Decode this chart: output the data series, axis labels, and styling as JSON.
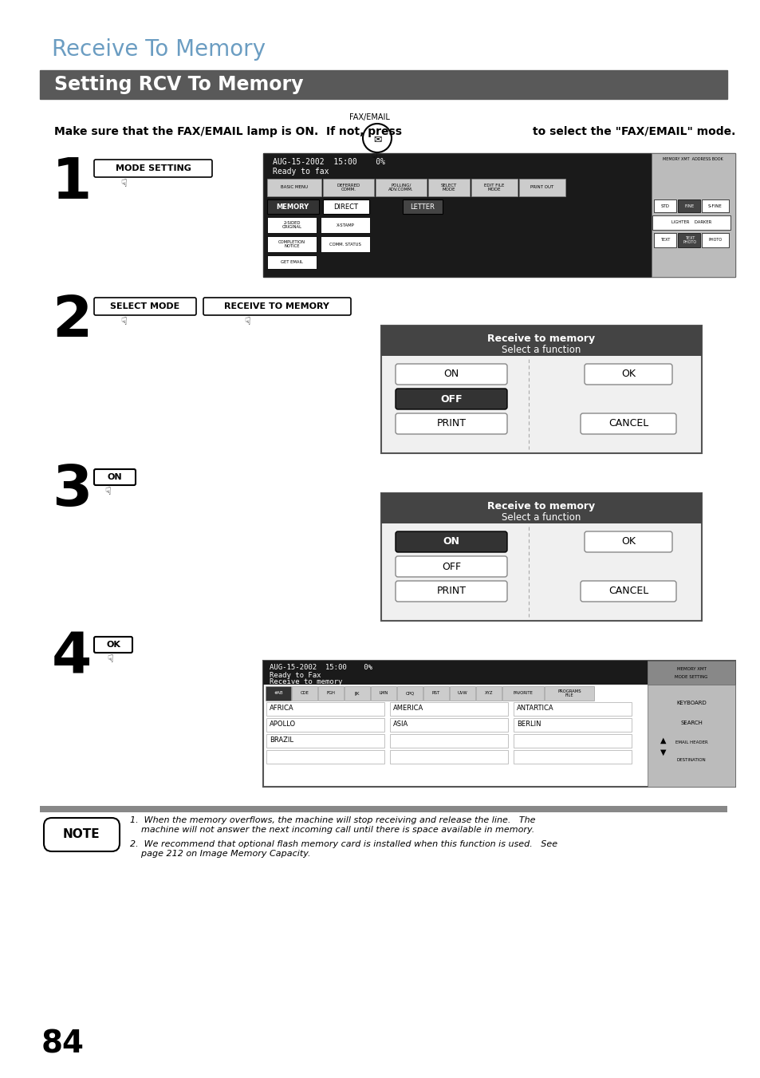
{
  "page_title": "Receive To Memory",
  "section_title": "Setting RCV To Memory",
  "title_color": "#6b9dc2",
  "section_bg": "#595959",
  "section_text_color": "#ffffff",
  "body_bg": "#ffffff",
  "intro_text": "Make sure that the FAX/EMAIL lamp is ON.  If not, press",
  "intro_text2": "to select the \"FAX/EMAIL\" mode.",
  "fax_label": "FAX/EMAIL",
  "step1_label": "MODE SETTING",
  "step2_label1": "SELECT MODE",
  "step2_label2": "RECEIVE TO MEMORY",
  "step3_label": "ON",
  "step4_label": "OK",
  "note_title": "NOTE",
  "note1": "1.  When the memory overflows, the machine will stop receiving and release the line.   The\n    machine will not answer the next incoming call until there is space available in memory.",
  "note2": "2.  We recommend that optional flash memory card is installed when this function is used.   See\n    page 212 on Image Memory Capacity.",
  "page_number": "84",
  "screen1_line1": "AUG-15-2002  15:00    0%",
  "screen1_line2": "Ready to fax",
  "screen2_title": "Receive to memory",
  "screen2_sub": "Select a function",
  "screen3_title": "Receive to memory",
  "screen3_sub": "Select a function",
  "screen4_line1": "AUG-15-2002  15:00    0%",
  "screen4_line2": "Ready to Fax",
  "screen4_line3": "Receive to memory"
}
